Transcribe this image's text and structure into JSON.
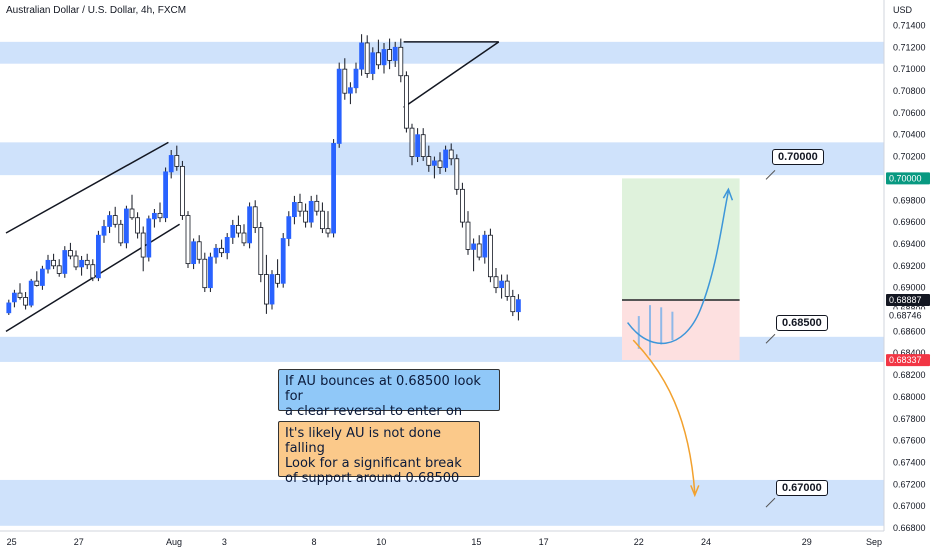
{
  "header": {
    "title": "Australian Dollar / U.S. Dollar, 4h, FXCM",
    "currency": "USD"
  },
  "colors": {
    "up_candle": "#2962ff",
    "down_candle": "#ffffff",
    "wick": "#131722",
    "zone": "#cfe2fb",
    "profit_zone": "#dff2dc",
    "loss_zone": "#fde0e0",
    "current_price_badge": "#131722",
    "target_badge": "#089981",
    "stop_badge": "#f23645",
    "blue_arrow": "#3d96d9",
    "orange_arrow": "#f2a12e"
  },
  "chart_data": {
    "type": "candlestick",
    "title": "Australian Dollar / U.S. Dollar, 4h, FXCM",
    "y_axis": {
      "range": [
        0.668,
        0.7145
      ],
      "unit": "USD",
      "ticks": [
        "0.71400",
        "0.71200",
        "0.71000",
        "0.70800",
        "0.70600",
        "0.70400",
        "0.70200",
        "0.70000",
        "0.69800",
        "0.69600",
        "0.69400",
        "0.69200",
        "0.69000",
        "0.68800",
        "0.68600",
        "0.68400",
        "0.68200",
        "0.68000",
        "0.67800",
        "0.67600",
        "0.67400",
        "0.67200",
        "0.67000",
        "0.66800"
      ]
    },
    "price_badges": [
      {
        "value": "0.70000",
        "kind": "target"
      },
      {
        "value": "0.68887",
        "kind": "current"
      },
      {
        "value": "0.68746",
        "kind": "plain"
      },
      {
        "value": "0.68337",
        "kind": "stop"
      }
    ],
    "x_axis": {
      "ticks": [
        {
          "label": "25",
          "bar": 1
        },
        {
          "label": "27",
          "bar": 13
        },
        {
          "label": "Aug",
          "bar": 30
        },
        {
          "label": "3",
          "bar": 39
        },
        {
          "label": "8",
          "bar": 55
        },
        {
          "label": "10",
          "bar": 67
        },
        {
          "label": "15",
          "bar": 84
        },
        {
          "label": "17",
          "bar": 96
        },
        {
          "label": "22",
          "bar": 113
        },
        {
          "label": "24",
          "bar": 125
        },
        {
          "label": "29",
          "bar": 143
        },
        {
          "label": "Sep",
          "bar": 155
        }
      ]
    },
    "zones": [
      {
        "from": 0.7105,
        "to": 0.7125
      },
      {
        "from": 0.7003,
        "to": 0.7033
      },
      {
        "from": 0.6832,
        "to": 0.6855
      },
      {
        "from": 0.6682,
        "to": 0.6724
      }
    ],
    "candles": [
      [
        0.6877,
        0.6889,
        0.6875,
        0.6886
      ],
      [
        0.6887,
        0.6898,
        0.6882,
        0.6895
      ],
      [
        0.6895,
        0.6904,
        0.6889,
        0.6891
      ],
      [
        0.6891,
        0.6896,
        0.688,
        0.6884
      ],
      [
        0.6884,
        0.6908,
        0.6882,
        0.6906
      ],
      [
        0.6906,
        0.6915,
        0.6901,
        0.6902
      ],
      [
        0.6902,
        0.692,
        0.6898,
        0.6917
      ],
      [
        0.6917,
        0.693,
        0.6913,
        0.6925
      ],
      [
        0.6925,
        0.6931,
        0.6917,
        0.692
      ],
      [
        0.692,
        0.6926,
        0.691,
        0.6913
      ],
      [
        0.6913,
        0.6938,
        0.6909,
        0.6934
      ],
      [
        0.6934,
        0.6941,
        0.6926,
        0.6929
      ],
      [
        0.6929,
        0.6934,
        0.6916,
        0.6919
      ],
      [
        0.6919,
        0.6929,
        0.6911,
        0.6925
      ],
      [
        0.6925,
        0.6931,
        0.6917,
        0.6921
      ],
      [
        0.6921,
        0.6926,
        0.6906,
        0.6909
      ],
      [
        0.6909,
        0.6952,
        0.6906,
        0.6948
      ],
      [
        0.6948,
        0.6962,
        0.6941,
        0.6956
      ],
      [
        0.6956,
        0.697,
        0.695,
        0.6966
      ],
      [
        0.6966,
        0.6974,
        0.6955,
        0.6958
      ],
      [
        0.6958,
        0.6962,
        0.6938,
        0.6941
      ],
      [
        0.6941,
        0.6975,
        0.6936,
        0.6972
      ],
      [
        0.6972,
        0.6985,
        0.6962,
        0.6964
      ],
      [
        0.6964,
        0.6969,
        0.6945,
        0.695
      ],
      [
        0.695,
        0.6956,
        0.6915,
        0.6928
      ],
      [
        0.6928,
        0.6966,
        0.6924,
        0.6963
      ],
      [
        0.6963,
        0.6972,
        0.6955,
        0.6968
      ],
      [
        0.6968,
        0.6978,
        0.696,
        0.6964
      ],
      [
        0.6964,
        0.701,
        0.696,
        0.7006
      ],
      [
        0.7006,
        0.7026,
        0.7,
        0.7021
      ],
      [
        0.7021,
        0.703,
        0.7007,
        0.7011
      ],
      [
        0.7011,
        0.7016,
        0.6962,
        0.6966
      ],
      [
        0.6966,
        0.697,
        0.6918,
        0.6922
      ],
      [
        0.6922,
        0.6945,
        0.6917,
        0.6942
      ],
      [
        0.6942,
        0.6948,
        0.6922,
        0.6926
      ],
      [
        0.6926,
        0.6932,
        0.6896,
        0.69
      ],
      [
        0.69,
        0.6932,
        0.6896,
        0.6928
      ],
      [
        0.6928,
        0.694,
        0.6922,
        0.6936
      ],
      [
        0.6936,
        0.6944,
        0.6928,
        0.6932
      ],
      [
        0.6932,
        0.695,
        0.6926,
        0.6946
      ],
      [
        0.6946,
        0.6962,
        0.694,
        0.6957
      ],
      [
        0.6957,
        0.6966,
        0.6946,
        0.695
      ],
      [
        0.695,
        0.6958,
        0.6938,
        0.6941
      ],
      [
        0.6941,
        0.6978,
        0.6936,
        0.6974
      ],
      [
        0.6974,
        0.698,
        0.695,
        0.6955
      ],
      [
        0.6955,
        0.696,
        0.6905,
        0.6912
      ],
      [
        0.6912,
        0.693,
        0.6876,
        0.6885
      ],
      [
        0.6885,
        0.6916,
        0.688,
        0.6912
      ],
      [
        0.6912,
        0.6926,
        0.69,
        0.6904
      ],
      [
        0.6904,
        0.695,
        0.69,
        0.6945
      ],
      [
        0.6945,
        0.697,
        0.6938,
        0.6965
      ],
      [
        0.6965,
        0.6984,
        0.6958,
        0.6978
      ],
      [
        0.6978,
        0.6986,
        0.6965,
        0.697
      ],
      [
        0.697,
        0.6977,
        0.6955,
        0.696
      ],
      [
        0.696,
        0.6984,
        0.6955,
        0.6979
      ],
      [
        0.6979,
        0.6985,
        0.6966,
        0.697
      ],
      [
        0.697,
        0.6978,
        0.695,
        0.6954
      ],
      [
        0.6954,
        0.697,
        0.6946,
        0.695
      ],
      [
        0.695,
        0.7036,
        0.6946,
        0.7032
      ],
      [
        0.7032,
        0.7106,
        0.7028,
        0.71
      ],
      [
        0.71,
        0.711,
        0.7072,
        0.7078
      ],
      [
        0.7078,
        0.7088,
        0.7068,
        0.7083
      ],
      [
        0.7083,
        0.7106,
        0.7078,
        0.71
      ],
      [
        0.71,
        0.7132,
        0.7094,
        0.7124
      ],
      [
        0.7124,
        0.7131,
        0.7092,
        0.7096
      ],
      [
        0.7096,
        0.712,
        0.709,
        0.7115
      ],
      [
        0.7115,
        0.7127,
        0.71,
        0.7104
      ],
      [
        0.7104,
        0.7124,
        0.7096,
        0.7118
      ],
      [
        0.7118,
        0.7128,
        0.71,
        0.7108
      ],
      [
        0.7108,
        0.7125,
        0.7102,
        0.712
      ],
      [
        0.712,
        0.7128,
        0.7088,
        0.7094
      ],
      [
        0.7094,
        0.7098,
        0.7042,
        0.7046
      ],
      [
        0.7046,
        0.705,
        0.7012,
        0.702
      ],
      [
        0.702,
        0.7046,
        0.7015,
        0.704
      ],
      [
        0.704,
        0.7046,
        0.7016,
        0.702
      ],
      [
        0.702,
        0.703,
        0.7006,
        0.7012
      ],
      [
        0.7012,
        0.702,
        0.7,
        0.7016
      ],
      [
        0.7016,
        0.7024,
        0.7004,
        0.701
      ],
      [
        0.701,
        0.703,
        0.7006,
        0.7026
      ],
      [
        0.7026,
        0.7032,
        0.7012,
        0.7018
      ],
      [
        0.7018,
        0.7022,
        0.6985,
        0.699
      ],
      [
        0.699,
        0.6996,
        0.6955,
        0.696
      ],
      [
        0.696,
        0.697,
        0.693,
        0.6935
      ],
      [
        0.6935,
        0.6945,
        0.6915,
        0.694
      ],
      [
        0.694,
        0.6948,
        0.6925,
        0.6928
      ],
      [
        0.6928,
        0.6952,
        0.6922,
        0.6948
      ],
      [
        0.6948,
        0.6954,
        0.6905,
        0.691
      ],
      [
        0.691,
        0.6918,
        0.6895,
        0.69
      ],
      [
        0.69,
        0.6912,
        0.689,
        0.6906
      ],
      [
        0.6906,
        0.6912,
        0.6888,
        0.6892
      ],
      [
        0.6892,
        0.6898,
        0.6874,
        0.6878
      ],
      [
        0.6878,
        0.6894,
        0.687,
        0.6889
      ]
    ],
    "trend_lines": [
      {
        "name": "channel-upper",
        "p1": [
          0,
          0.695
        ],
        "p2": [
          29,
          0.7033
        ]
      },
      {
        "name": "channel-lower",
        "p1": [
          0,
          0.686
        ],
        "p2": [
          31,
          0.6958
        ]
      },
      {
        "name": "triangle-top",
        "p1": [
          71,
          0.7125
        ],
        "p2": [
          88,
          0.7125
        ]
      },
      {
        "name": "triangle-bottom",
        "p1": [
          71,
          0.7065
        ],
        "p2": [
          88,
          0.7125
        ]
      }
    ],
    "position": {
      "entry": 0.68887,
      "target": 0.7,
      "stop": 0.68337,
      "bar_start": 110,
      "bar_end": 131
    }
  },
  "notes": [
    {
      "text": "If AU bounces at 0.68500 look for\na clear reversal to enter on",
      "color": "blue"
    },
    {
      "text": "It's likely AU is not done falling\nLook for a significant break\nof support around 0.68500",
      "color": "orange"
    }
  ],
  "callouts": [
    {
      "label": "0.70000"
    },
    {
      "label": "0.68500"
    },
    {
      "label": "0.67000"
    }
  ]
}
